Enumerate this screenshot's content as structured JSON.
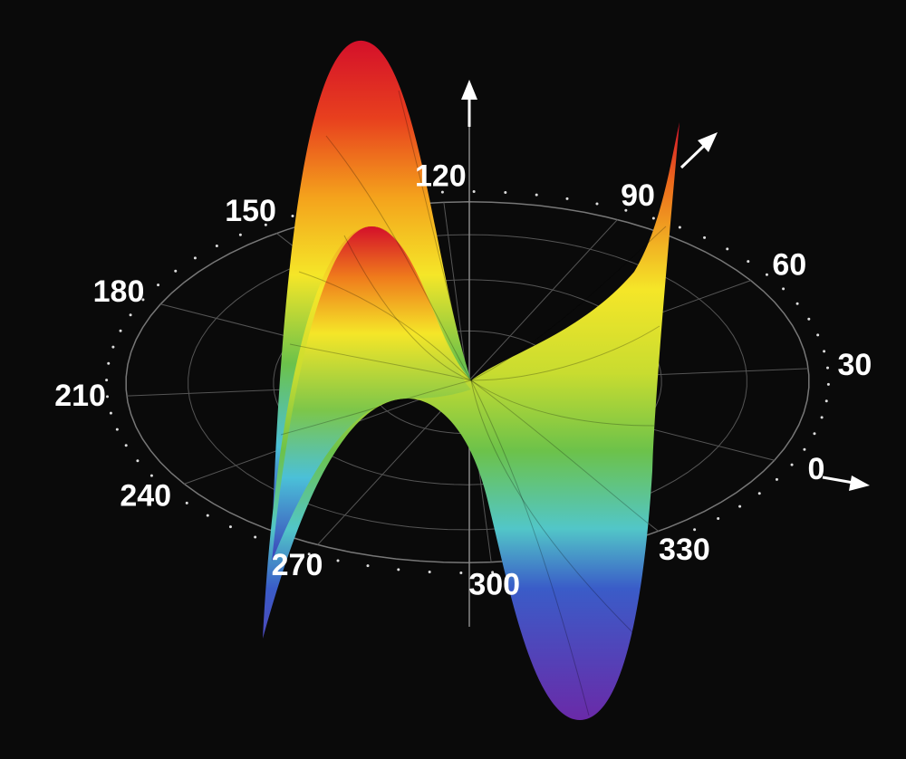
{
  "angle_labels": [
    0,
    30,
    60,
    90,
    120,
    150,
    180,
    210,
    240,
    270,
    300,
    330
  ]
}
